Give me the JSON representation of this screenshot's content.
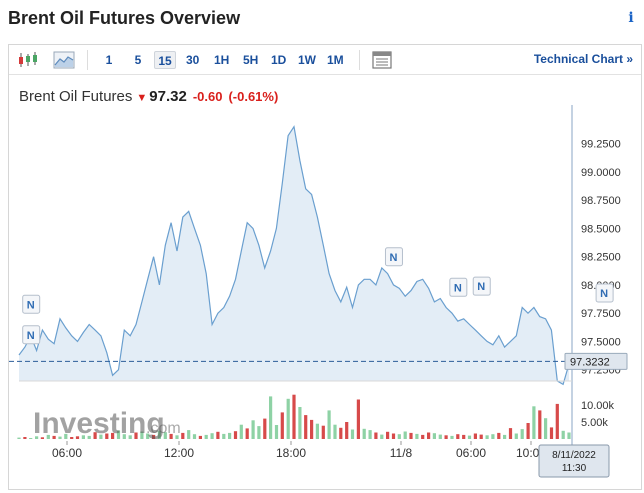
{
  "page_title": "Brent Oil Futures Overview",
  "info_icon": "i",
  "toolbar": {
    "timeframes": [
      "1",
      "5",
      "15",
      "30",
      "1H",
      "5H",
      "1D",
      "1W",
      "1M"
    ],
    "active_timeframe": "15",
    "technical_chart_label": "Technical Chart »"
  },
  "quote": {
    "name": "Brent Oil Futures",
    "arrow": "▼",
    "price": "97.32",
    "change": "-0.60",
    "change_percent": "(-0.61%)"
  },
  "chart_data": {
    "type": "area",
    "price_ticks": [
      "99.2500",
      "99.0000",
      "98.7500",
      "98.5000",
      "98.2500",
      "98.0000",
      "97.7500",
      "97.5000",
      "97.2500"
    ],
    "ylim": [
      97.15,
      99.45
    ],
    "current_price_label": "97.3232",
    "current_price": 97.3232,
    "volume_ticks": [
      "10.00k",
      "5.00k"
    ],
    "x_ticks": [
      "06:00",
      "12:00",
      "18:00",
      "11/8",
      "06:00",
      "10:00"
    ],
    "crosshair_label": [
      "8/11/2022",
      "11:30"
    ],
    "watermark": "Investing.com",
    "news_marker": "N",
    "colors": {
      "line": "#6a9fcf",
      "fill": "#e3edf6",
      "up": "#8ed2a5",
      "down": "#d74a4a",
      "price_line": "#2b5d99"
    },
    "y": [
      97.38,
      97.45,
      97.55,
      97.42,
      97.6,
      97.52,
      97.48,
      97.7,
      97.62,
      97.55,
      97.5,
      97.58,
      97.65,
      97.6,
      97.55,
      97.4,
      97.2,
      97.25,
      97.6,
      97.55,
      97.65,
      97.85,
      98.05,
      98.25,
      98.0,
      98.35,
      98.55,
      98.3,
      98.6,
      98.65,
      98.5,
      98.35,
      98.1,
      97.65,
      97.75,
      97.8,
      97.9,
      98.05,
      98.3,
      98.55,
      98.5,
      98.35,
      98.15,
      98.3,
      98.5,
      98.9,
      99.32,
      99.4,
      99.1,
      98.85,
      98.8,
      98.6,
      98.35,
      98.1,
      97.95,
      97.85,
      97.98,
      97.8,
      98.0,
      98.05,
      98.05,
      98.0,
      98.15,
      98.1,
      98.0,
      97.97,
      97.9,
      97.95,
      98.03,
      98.05,
      97.97,
      97.85,
      97.88,
      97.8,
      97.75,
      97.68,
      97.7,
      97.65,
      97.6,
      97.55,
      97.5,
      97.47,
      97.55,
      97.45,
      97.5,
      97.55,
      97.8,
      97.75,
      97.8,
      97.72,
      97.7,
      97.6,
      97.15,
      97.12,
      97.3
    ],
    "volumes": [
      0.4,
      0.6,
      0.3,
      0.8,
      0.5,
      1.2,
      0.9,
      0.7,
      1.5,
      0.6,
      0.8,
      1.1,
      0.9,
      2.0,
      1.3,
      1.6,
      1.8,
      2.5,
      1.4,
      1.1,
      1.9,
      2.2,
      1.6,
      1.2,
      2.4,
      2.0,
      1.5,
      1.1,
      1.8,
      2.6,
      1.4,
      0.9,
      1.2,
      1.7,
      2.1,
      1.5,
      1.8,
      2.3,
      4.2,
      3.1,
      5.5,
      3.8,
      6.0,
      12.5,
      4.1,
      7.8,
      11.8,
      13.0,
      9.4,
      7.0,
      5.6,
      4.5,
      3.9,
      8.4,
      4.2,
      3.3,
      5.0,
      2.8,
      11.6,
      3.0,
      2.6,
      1.9,
      1.3,
      2.1,
      1.6,
      1.4,
      2.2,
      1.8,
      1.5,
      1.2,
      1.9,
      1.7,
      1.3,
      1.1,
      0.9,
      1.4,
      1.2,
      1.0,
      1.6,
      1.3,
      1.1,
      1.4,
      1.8,
      1.2,
      3.2,
      1.6,
      2.9,
      4.7,
      9.6,
      8.4,
      6.1,
      3.4,
      10.3,
      2.4,
      1.9
    ],
    "volume_up": [
      1,
      0,
      1,
      1,
      0,
      1,
      0,
      1,
      1,
      0,
      0,
      1,
      1,
      0,
      1,
      0,
      0,
      1,
      1,
      1,
      0,
      1,
      1,
      0,
      1,
      1,
      0,
      1,
      0,
      1,
      1,
      0,
      1,
      1,
      0,
      1,
      1,
      0,
      1,
      0,
      1,
      1,
      0,
      1,
      1,
      0,
      1,
      0,
      1,
      0,
      0,
      1,
      0,
      1,
      1,
      0,
      0,
      1,
      0,
      1,
      1,
      0,
      1,
      0,
      0,
      1,
      1,
      0,
      1,
      0,
      0,
      1,
      1,
      0,
      1,
      0,
      0,
      1,
      0,
      0,
      1,
      1,
      0,
      1,
      0,
      1,
      1,
      0,
      1,
      0,
      1,
      0,
      0,
      1,
      1
    ],
    "news_markers": [
      {
        "i": 2,
        "v": 97.82
      },
      {
        "i": 2,
        "v": 97.55
      },
      {
        "i": 64,
        "v": 98.24
      },
      {
        "i": 75,
        "v": 97.97
      },
      {
        "i": 79,
        "v": 97.98
      },
      {
        "i": 100,
        "v": 97.92
      }
    ]
  }
}
